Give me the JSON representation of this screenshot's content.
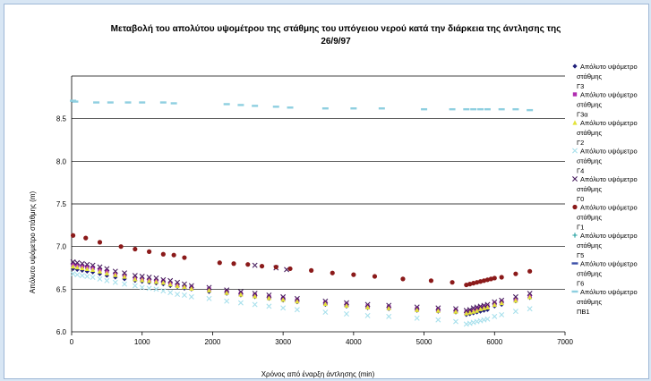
{
  "chart_data": {
    "type": "scatter",
    "title_lines": [
      "Μεταβολή του απολύτου υψομέτρου της στάθμης του υπόγειου νερού κατά την διάρκεια της άντλησης της",
      "26/9/97"
    ],
    "xlabel": "Χρόνος από έναρξη άντλησης (min)",
    "ylabel": "Απόλυτο υψόμετρο στάθμης (m)",
    "xlim": [
      0,
      7000
    ],
    "ylim": [
      6.0,
      9.0
    ],
    "x_ticks": [
      "0",
      "1000",
      "2000",
      "3000",
      "4000",
      "5000",
      "6000",
      "7000"
    ],
    "y_ticks": [
      "6.0",
      "6.5",
      "7.0",
      "7.5",
      "8.0",
      "8.5"
    ],
    "grid": "horizontal",
    "legend_position": "right",
    "series": [
      {
        "name": "Απόλυτο υψόμετρο στάθμης Γ3",
        "color": "#1f1f7a",
        "marker": "diamond",
        "points": [
          [
            20,
            6.74
          ],
          [
            80,
            6.73
          ],
          [
            150,
            6.72
          ],
          [
            220,
            6.71
          ],
          [
            300,
            6.7
          ],
          [
            400,
            6.68
          ],
          [
            500,
            6.66
          ],
          [
            620,
            6.64
          ],
          [
            750,
            6.62
          ],
          [
            900,
            6.6
          ],
          [
            1000,
            6.59
          ],
          [
            1100,
            6.58
          ],
          [
            1200,
            6.57
          ],
          [
            1300,
            6.56
          ],
          [
            1400,
            6.54
          ],
          [
            1500,
            6.53
          ],
          [
            1600,
            6.51
          ],
          [
            1700,
            6.5
          ],
          [
            1950,
            6.47
          ],
          [
            2200,
            6.45
          ],
          [
            2400,
            6.43
          ],
          [
            2600,
            6.41
          ],
          [
            2800,
            6.39
          ],
          [
            3000,
            6.37
          ],
          [
            3200,
            6.35
          ],
          [
            3600,
            6.32
          ],
          [
            3900,
            6.3
          ],
          [
            4200,
            6.28
          ],
          [
            4500,
            6.27
          ],
          [
            4900,
            6.25
          ],
          [
            5200,
            6.24
          ],
          [
            5450,
            6.23
          ],
          [
            5600,
            6.2
          ],
          [
            5650,
            6.21
          ],
          [
            5700,
            6.22
          ],
          [
            5750,
            6.23
          ],
          [
            5800,
            6.24
          ],
          [
            5850,
            6.25
          ],
          [
            5900,
            6.26
          ],
          [
            6000,
            6.3
          ],
          [
            6100,
            6.32
          ],
          [
            6300,
            6.36
          ],
          [
            6500,
            6.4
          ]
        ]
      },
      {
        "name": "Απόλυτο υψόμετρο στάθμης Γ3α",
        "color": "#b02cb0",
        "marker": "square",
        "points": [
          [
            20,
            6.79
          ],
          [
            80,
            6.78
          ],
          [
            150,
            6.77
          ],
          [
            220,
            6.76
          ],
          [
            300,
            6.75
          ],
          [
            400,
            6.73
          ],
          [
            500,
            6.71
          ],
          [
            620,
            6.68
          ],
          [
            750,
            6.66
          ],
          [
            900,
            6.63
          ],
          [
            1000,
            6.62
          ],
          [
            1100,
            6.61
          ],
          [
            1200,
            6.6
          ],
          [
            1300,
            6.59
          ],
          [
            1400,
            6.57
          ],
          [
            1500,
            6.55
          ],
          [
            1600,
            6.53
          ],
          [
            1700,
            6.52
          ],
          [
            1950,
            6.5
          ],
          [
            2200,
            6.47
          ],
          [
            2400,
            6.45
          ],
          [
            2600,
            6.43
          ],
          [
            2800,
            6.41
          ],
          [
            3000,
            6.39
          ],
          [
            3200,
            6.37
          ],
          [
            3600,
            6.34
          ],
          [
            3900,
            6.32
          ],
          [
            4200,
            6.3
          ],
          [
            4500,
            6.29
          ],
          [
            4900,
            6.27
          ],
          [
            5200,
            6.26
          ],
          [
            5450,
            6.25
          ],
          [
            5600,
            6.23
          ],
          [
            5650,
            6.24
          ],
          [
            5700,
            6.25
          ],
          [
            5750,
            6.27
          ],
          [
            5800,
            6.28
          ],
          [
            5850,
            6.29
          ],
          [
            5900,
            6.3
          ],
          [
            6000,
            6.33
          ],
          [
            6100,
            6.35
          ],
          [
            6300,
            6.38
          ],
          [
            6500,
            6.42
          ]
        ]
      },
      {
        "name": "Απόλυτο υψόμετρο στάθμης Γ2",
        "color": "#e3e33a",
        "marker": "triangle",
        "points": [
          [
            20,
            6.77
          ],
          [
            80,
            6.76
          ],
          [
            150,
            6.75
          ],
          [
            220,
            6.74
          ],
          [
            300,
            6.73
          ],
          [
            400,
            6.71
          ],
          [
            500,
            6.69
          ],
          [
            620,
            6.67
          ],
          [
            750,
            6.65
          ],
          [
            900,
            6.62
          ],
          [
            1000,
            6.61
          ],
          [
            1100,
            6.6
          ],
          [
            1200,
            6.59
          ],
          [
            1300,
            6.58
          ],
          [
            1400,
            6.56
          ],
          [
            1500,
            6.54
          ],
          [
            1600,
            6.53
          ],
          [
            1700,
            6.51
          ],
          [
            1950,
            6.49
          ],
          [
            2200,
            6.46
          ],
          [
            2400,
            6.44
          ],
          [
            2600,
            6.42
          ],
          [
            2800,
            6.4
          ],
          [
            3000,
            6.38
          ],
          [
            3200,
            6.36
          ],
          [
            3600,
            6.33
          ],
          [
            3900,
            6.31
          ],
          [
            4200,
            6.29
          ],
          [
            4500,
            6.28
          ],
          [
            4900,
            6.26
          ],
          [
            5200,
            6.25
          ],
          [
            5450,
            6.24
          ],
          [
            5600,
            6.22
          ],
          [
            5650,
            6.23
          ],
          [
            5700,
            6.24
          ],
          [
            5750,
            6.25
          ],
          [
            5800,
            6.27
          ],
          [
            5850,
            6.28
          ],
          [
            5900,
            6.29
          ],
          [
            6000,
            6.32
          ],
          [
            6100,
            6.34
          ],
          [
            6300,
            6.37
          ],
          [
            6500,
            6.41
          ]
        ]
      },
      {
        "name": "Απόλυτο υψόμετρο στάθμης Γ4",
        "color": "#a8e0ec",
        "marker": "x",
        "points": [
          [
            20,
            6.68
          ],
          [
            80,
            6.67
          ],
          [
            150,
            6.66
          ],
          [
            220,
            6.65
          ],
          [
            300,
            6.64
          ],
          [
            400,
            6.62
          ],
          [
            500,
            6.6
          ],
          [
            620,
            6.58
          ],
          [
            750,
            6.56
          ],
          [
            900,
            6.54
          ],
          [
            1000,
            6.52
          ],
          [
            1100,
            6.51
          ],
          [
            1200,
            6.5
          ],
          [
            1300,
            6.48
          ],
          [
            1400,
            6.46
          ],
          [
            1500,
            6.44
          ],
          [
            1600,
            6.43
          ],
          [
            1700,
            6.41
          ],
          [
            1950,
            6.39
          ],
          [
            2200,
            6.36
          ],
          [
            2400,
            6.34
          ],
          [
            2600,
            6.32
          ],
          [
            2800,
            6.3
          ],
          [
            3000,
            6.28
          ],
          [
            3200,
            6.26
          ],
          [
            3600,
            6.23
          ],
          [
            3900,
            6.21
          ],
          [
            4200,
            6.19
          ],
          [
            4500,
            6.18
          ],
          [
            4900,
            6.16
          ],
          [
            5200,
            6.14
          ],
          [
            5450,
            6.12
          ],
          [
            5600,
            6.09
          ],
          [
            5650,
            6.1
          ],
          [
            5700,
            6.11
          ],
          [
            5750,
            6.12
          ],
          [
            5800,
            6.13
          ],
          [
            5850,
            6.14
          ],
          [
            5900,
            6.15
          ],
          [
            6000,
            6.18
          ],
          [
            6100,
            6.2
          ],
          [
            6300,
            6.24
          ],
          [
            6500,
            6.27
          ]
        ]
      },
      {
        "name": "Απόλυτο υψόμετρο στάθμης Γ0",
        "color": "#4a2060",
        "marker": "x",
        "points": [
          [
            20,
            6.82
          ],
          [
            80,
            6.81
          ],
          [
            150,
            6.8
          ],
          [
            220,
            6.79
          ],
          [
            300,
            6.78
          ],
          [
            400,
            6.76
          ],
          [
            500,
            6.74
          ],
          [
            620,
            6.71
          ],
          [
            750,
            6.69
          ],
          [
            900,
            6.66
          ],
          [
            1000,
            6.65
          ],
          [
            1100,
            6.64
          ],
          [
            1200,
            6.63
          ],
          [
            1300,
            6.61
          ],
          [
            1400,
            6.6
          ],
          [
            1500,
            6.58
          ],
          [
            1600,
            6.56
          ],
          [
            1700,
            6.54
          ],
          [
            1950,
            6.52
          ],
          [
            2200,
            6.49
          ],
          [
            2400,
            6.47
          ],
          [
            2600,
            6.45
          ],
          [
            2800,
            6.43
          ],
          [
            3000,
            6.41
          ],
          [
            3200,
            6.39
          ],
          [
            3600,
            6.36
          ],
          [
            3900,
            6.34
          ],
          [
            4200,
            6.32
          ],
          [
            4500,
            6.31
          ],
          [
            4900,
            6.29
          ],
          [
            5200,
            6.28
          ],
          [
            5450,
            6.27
          ],
          [
            5600,
            6.25
          ],
          [
            5650,
            6.26
          ],
          [
            5700,
            6.28
          ],
          [
            5750,
            6.29
          ],
          [
            5800,
            6.3
          ],
          [
            5850,
            6.31
          ],
          [
            5900,
            6.32
          ],
          [
            6000,
            6.35
          ],
          [
            6100,
            6.37
          ],
          [
            6300,
            6.41
          ],
          [
            6500,
            6.45
          ],
          [
            2600,
            6.78
          ],
          [
            2900,
            6.75
          ],
          [
            3050,
            6.73
          ]
        ]
      },
      {
        "name": "Απόλυτο υψόμετρο στάθμης Γ1",
        "color": "#8b1a1a",
        "marker": "circle",
        "points": [
          [
            20,
            7.13
          ],
          [
            200,
            7.1
          ],
          [
            400,
            7.05
          ],
          [
            700,
            7.0
          ],
          [
            900,
            6.97
          ],
          [
            1100,
            6.94
          ],
          [
            1300,
            6.91
          ],
          [
            1450,
            6.9
          ],
          [
            1600,
            6.87
          ],
          [
            2100,
            6.81
          ],
          [
            2300,
            6.8
          ],
          [
            2500,
            6.79
          ],
          [
            2700,
            6.77
          ],
          [
            2900,
            6.76
          ],
          [
            3100,
            6.74
          ],
          [
            3400,
            6.72
          ],
          [
            3700,
            6.69
          ],
          [
            4000,
            6.67
          ],
          [
            4300,
            6.65
          ],
          [
            4700,
            6.62
          ],
          [
            5100,
            6.6
          ],
          [
            5400,
            6.58
          ],
          [
            5600,
            6.55
          ],
          [
            5650,
            6.56
          ],
          [
            5700,
            6.57
          ],
          [
            5750,
            6.58
          ],
          [
            5800,
            6.59
          ],
          [
            5850,
            6.6
          ],
          [
            5900,
            6.61
          ],
          [
            5950,
            6.62
          ],
          [
            6000,
            6.63
          ],
          [
            6100,
            6.64
          ],
          [
            6300,
            6.68
          ],
          [
            6500,
            6.71
          ]
        ]
      },
      {
        "name": "Απόλυτο υψόμετρο στάθμης Γ5",
        "color": "#1f9e9e",
        "marker": "plus",
        "points": []
      },
      {
        "name": "Απόλυτο υψόμετρο στάθμης Γ6",
        "color": "#3b4fa8",
        "marker": "dash",
        "points": []
      },
      {
        "name": "Απόλυτο υψόμετρο στάθμης ΠΒ1",
        "color": "#8ecfe0",
        "marker": "dash",
        "points": [
          [
            20,
            8.71
          ],
          [
            50,
            8.7
          ],
          [
            350,
            8.69
          ],
          [
            550,
            8.69
          ],
          [
            800,
            8.69
          ],
          [
            1000,
            8.69
          ],
          [
            1300,
            8.69
          ],
          [
            1450,
            8.68
          ],
          [
            2200,
            8.67
          ],
          [
            2400,
            8.66
          ],
          [
            2600,
            8.65
          ],
          [
            2900,
            8.64
          ],
          [
            3100,
            8.63
          ],
          [
            3600,
            8.62
          ],
          [
            4000,
            8.62
          ],
          [
            4400,
            8.62
          ],
          [
            5000,
            8.61
          ],
          [
            5400,
            8.61
          ],
          [
            5600,
            8.61
          ],
          [
            5700,
            8.61
          ],
          [
            5800,
            8.61
          ],
          [
            5900,
            8.61
          ],
          [
            6100,
            8.61
          ],
          [
            6300,
            8.61
          ],
          [
            6500,
            8.6
          ]
        ]
      }
    ]
  }
}
